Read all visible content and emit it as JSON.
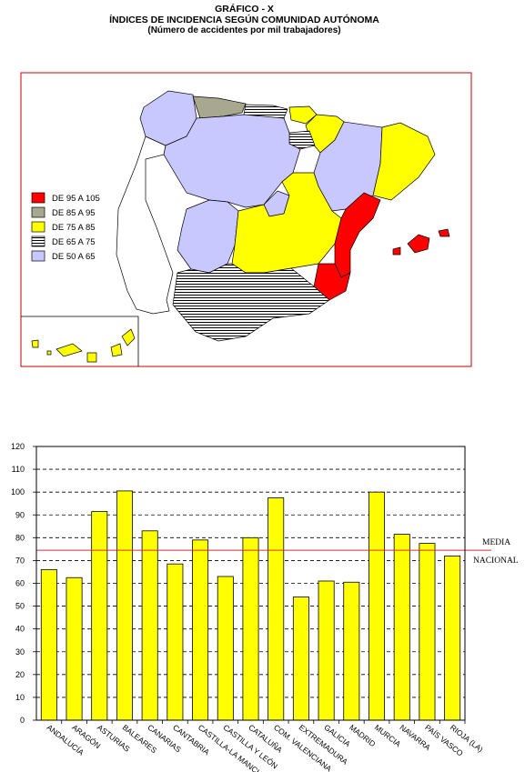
{
  "header": {
    "title": "GRÁFICO - X",
    "subtitle": "ÍNDICES DE INCIDENCIA SEGÚN COMUNIDAD AUTÓNOMA",
    "note": "(Número de accidentes por mil trabajadores)"
  },
  "map": {
    "legend": [
      {
        "label": "DE 95 A 105",
        "fill": "red"
      },
      {
        "label": "DE 85 A 95",
        "fill": "olive"
      },
      {
        "label": "DE 75 A 85",
        "fill": "yellow"
      },
      {
        "label": "DE 65 A 75",
        "fill": "stripes"
      },
      {
        "label": "DE 50 A 65",
        "fill": "lavender"
      }
    ],
    "colors": {
      "red": "#ff0000",
      "olive": "#a8a890",
      "yellow": "#ffff00",
      "lavender": "#c8c8ff",
      "border": "#cc0000"
    }
  },
  "chart_data": {
    "type": "bar",
    "categories": [
      "ANDALUCÍA",
      "ARAGÓN",
      "ASTURIAS",
      "BALEARES",
      "CANARIAS",
      "CANTABRIA",
      "CASTILLA-LA MANCHA",
      "CASTILLA Y LEÓN",
      "CATALUÑA",
      "COM. VALENCIANA",
      "EXTREMADURA",
      "GALICIA",
      "MADRID",
      "MURCIA",
      "NAVARRA",
      "PAÍS VASCO",
      "RIOJA (LA)"
    ],
    "values": [
      66,
      62.5,
      91.5,
      100.5,
      83,
      68.5,
      79,
      63,
      80,
      97.5,
      54,
      61,
      60.5,
      100,
      81.5,
      77.5,
      72
    ],
    "ylim": [
      0,
      120
    ],
    "yticks": [
      0,
      10,
      20,
      30,
      40,
      50,
      60,
      70,
      80,
      90,
      100,
      110,
      120
    ],
    "reference_line": {
      "value": 74.5,
      "label_line1": "MEDIA",
      "label_line2": "NACIONAL"
    },
    "bar_color": "#ffff00",
    "ref_color": "#cc3333",
    "grid": true
  }
}
